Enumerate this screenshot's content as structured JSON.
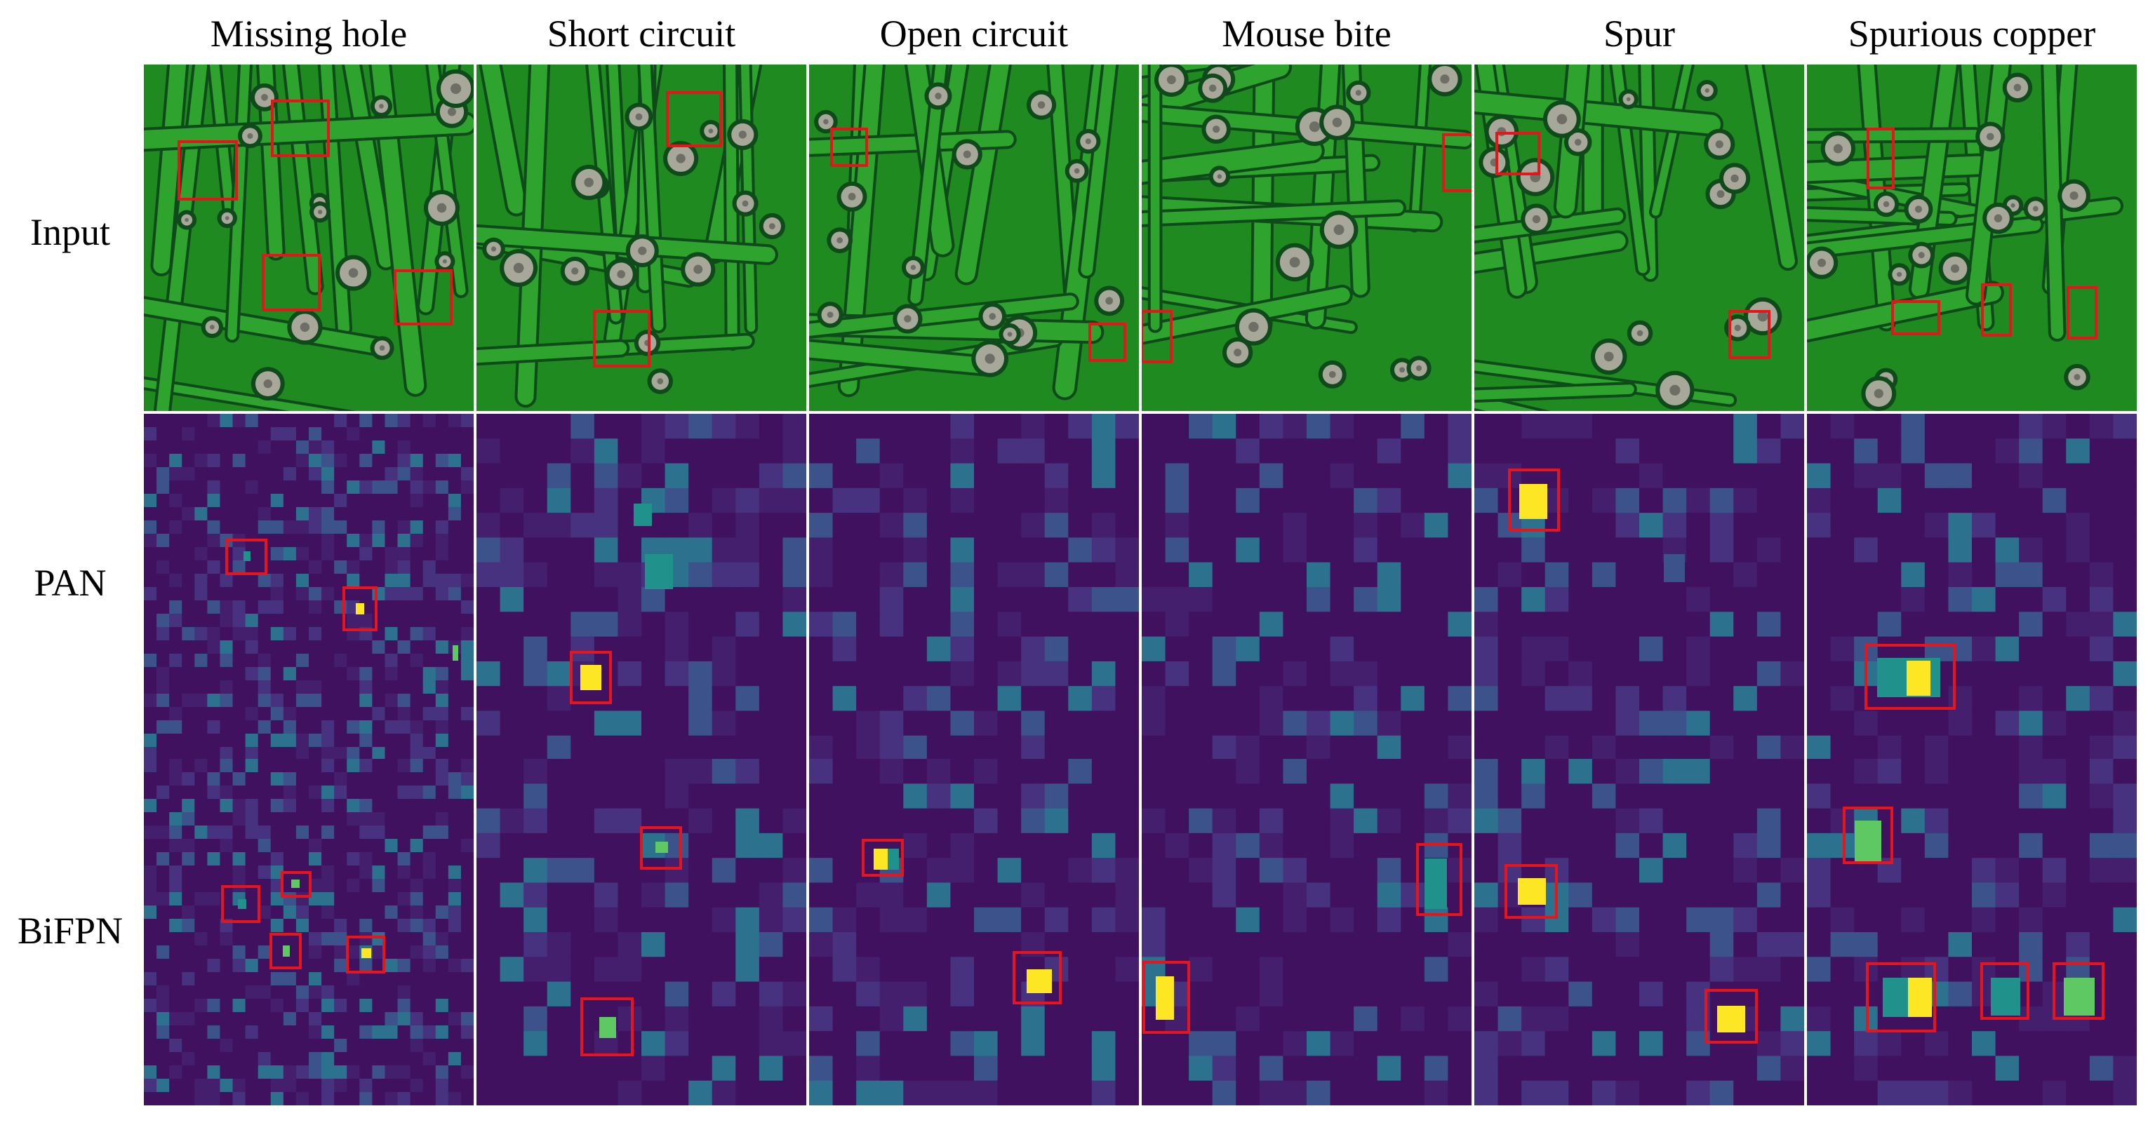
{
  "columns": [
    "Missing hole",
    "Short circuit",
    "Open circuit",
    "Mouse bite",
    "Spur",
    "Spurious copper"
  ],
  "rows": [
    "Input",
    "PAN",
    "BiFPN"
  ],
  "colors": {
    "pcb_base": "#1f8a1f",
    "pcb_trace": "#2ea32e",
    "pcb_gap": "#0f4a1a",
    "pad": "#a7a89a",
    "heat_base": "#40115e",
    "heat_mid": "#3b528b",
    "heat_teal": "#21918c",
    "heat_green": "#5ec962",
    "heat_hot": "#fde725",
    "box": "#e8141c",
    "divider": "#ffffff"
  }
}
